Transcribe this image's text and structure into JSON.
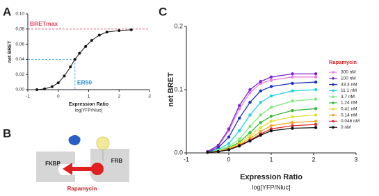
{
  "panel_labels": [
    "A",
    "B",
    "C"
  ],
  "diagram": {
    "left": "FKBP",
    "right": "FRB",
    "drug": "Rapamycin"
  },
  "chart_data": [
    {
      "type": "line",
      "ylabel": "net BRET",
      "xlabel": "Expression Ratio",
      "xlabel_sub": "log[YFP/Nluc]",
      "xlim": [
        -1,
        3
      ],
      "xticks": [
        -1,
        0,
        1,
        2,
        3
      ],
      "ylim": [
        0,
        0.1
      ],
      "yticks": [
        {
          "value": 0,
          "label": "0.00"
        },
        {
          "value": 0.02,
          "label": "0.02"
        },
        {
          "value": 0.04,
          "label": "0.04"
        },
        {
          "value": 0.06,
          "label": "0.06"
        },
        {
          "value": 0.08,
          "label": "0.08"
        },
        {
          "value": 0.1,
          "label": "0.10"
        }
      ],
      "series": [
        {
          "color": "#111111",
          "x": [
            -0.7,
            -0.45,
            -0.2,
            0,
            0.2,
            0.4,
            0.55,
            0.7,
            0.9,
            1.1,
            1.35,
            1.6,
            2.0,
            2.4
          ],
          "values": [
            0.0,
            0.001,
            0.004,
            0.009,
            0.018,
            0.03,
            0.04,
            0.048,
            0.057,
            0.065,
            0.072,
            0.076,
            0.078,
            0.079
          ]
        }
      ],
      "annotations": [
        {
          "text": "BRETmax",
          "y": 0.08,
          "color": "#e0405a"
        },
        {
          "text": "ER50",
          "x": 0.55,
          "y": 0.04,
          "color": "#2a8fd0"
        }
      ]
    },
    {
      "type": "line",
      "ylabel": "net BRET",
      "xlabel": "Expression Ratio",
      "xlabel_sub": "log[YFP/Nluc]",
      "xlim": [
        -1,
        3
      ],
      "xticks": [
        -1,
        0,
        1,
        2,
        3
      ],
      "ylim": [
        0,
        0.2
      ],
      "yticks": [
        {
          "value": 0,
          "label": "0.0"
        },
        {
          "value": 0.1,
          "label": "0.1"
        },
        {
          "value": 0.2,
          "label": "0.2"
        }
      ],
      "legend": "right",
      "legend_title": "Rapamycin",
      "x": [
        -0.5,
        -0.25,
        0,
        0.25,
        0.5,
        0.75,
        1,
        1.5,
        2.05
      ],
      "series": [
        {
          "name": "300 nM",
          "color": "#e87fe0",
          "values": [
            0.002,
            0.01,
            0.035,
            0.07,
            0.095,
            0.11,
            0.115,
            0.12,
            0.12
          ]
        },
        {
          "name": "100 nM",
          "color": "#7b22d6",
          "values": [
            0.002,
            0.012,
            0.038,
            0.075,
            0.1,
            0.113,
            0.12,
            0.125,
            0.125
          ]
        },
        {
          "name": "33.3 nM",
          "color": "#1a2fbf",
          "values": [
            0.001,
            0.008,
            0.025,
            0.055,
            0.08,
            0.098,
            0.105,
            0.11,
            0.112
          ]
        },
        {
          "name": "11.1 nM",
          "color": "#1fd3e0",
          "values": [
            0.001,
            0.005,
            0.015,
            0.035,
            0.06,
            0.08,
            0.09,
            0.098,
            0.1
          ]
        },
        {
          "name": "3.7 nM",
          "color": "#7ee87a",
          "values": [
            0.001,
            0.004,
            0.01,
            0.022,
            0.042,
            0.06,
            0.072,
            0.082,
            0.085
          ]
        },
        {
          "name": "1.24 nM",
          "color": "#38b838",
          "values": [
            0.001,
            0.003,
            0.008,
            0.017,
            0.032,
            0.048,
            0.058,
            0.067,
            0.07
          ]
        },
        {
          "name": "0.41 nM",
          "color": "#e0e030",
          "values": [
            0.001,
            0.003,
            0.007,
            0.015,
            0.027,
            0.04,
            0.05,
            0.057,
            0.06
          ]
        },
        {
          "name": "0.14 nM",
          "color": "#f5a623",
          "values": [
            0.001,
            0.002,
            0.006,
            0.013,
            0.023,
            0.034,
            0.043,
            0.048,
            0.05
          ]
        },
        {
          "name": "0.046 nM",
          "color": "#e23030",
          "values": [
            0.001,
            0.002,
            0.005,
            0.012,
            0.02,
            0.03,
            0.038,
            0.043,
            0.045
          ]
        },
        {
          "name": "0 nM",
          "color": "#111111",
          "values": [
            0.001,
            0.002,
            0.005,
            0.011,
            0.019,
            0.028,
            0.035,
            0.039,
            0.04
          ]
        }
      ]
    }
  ]
}
